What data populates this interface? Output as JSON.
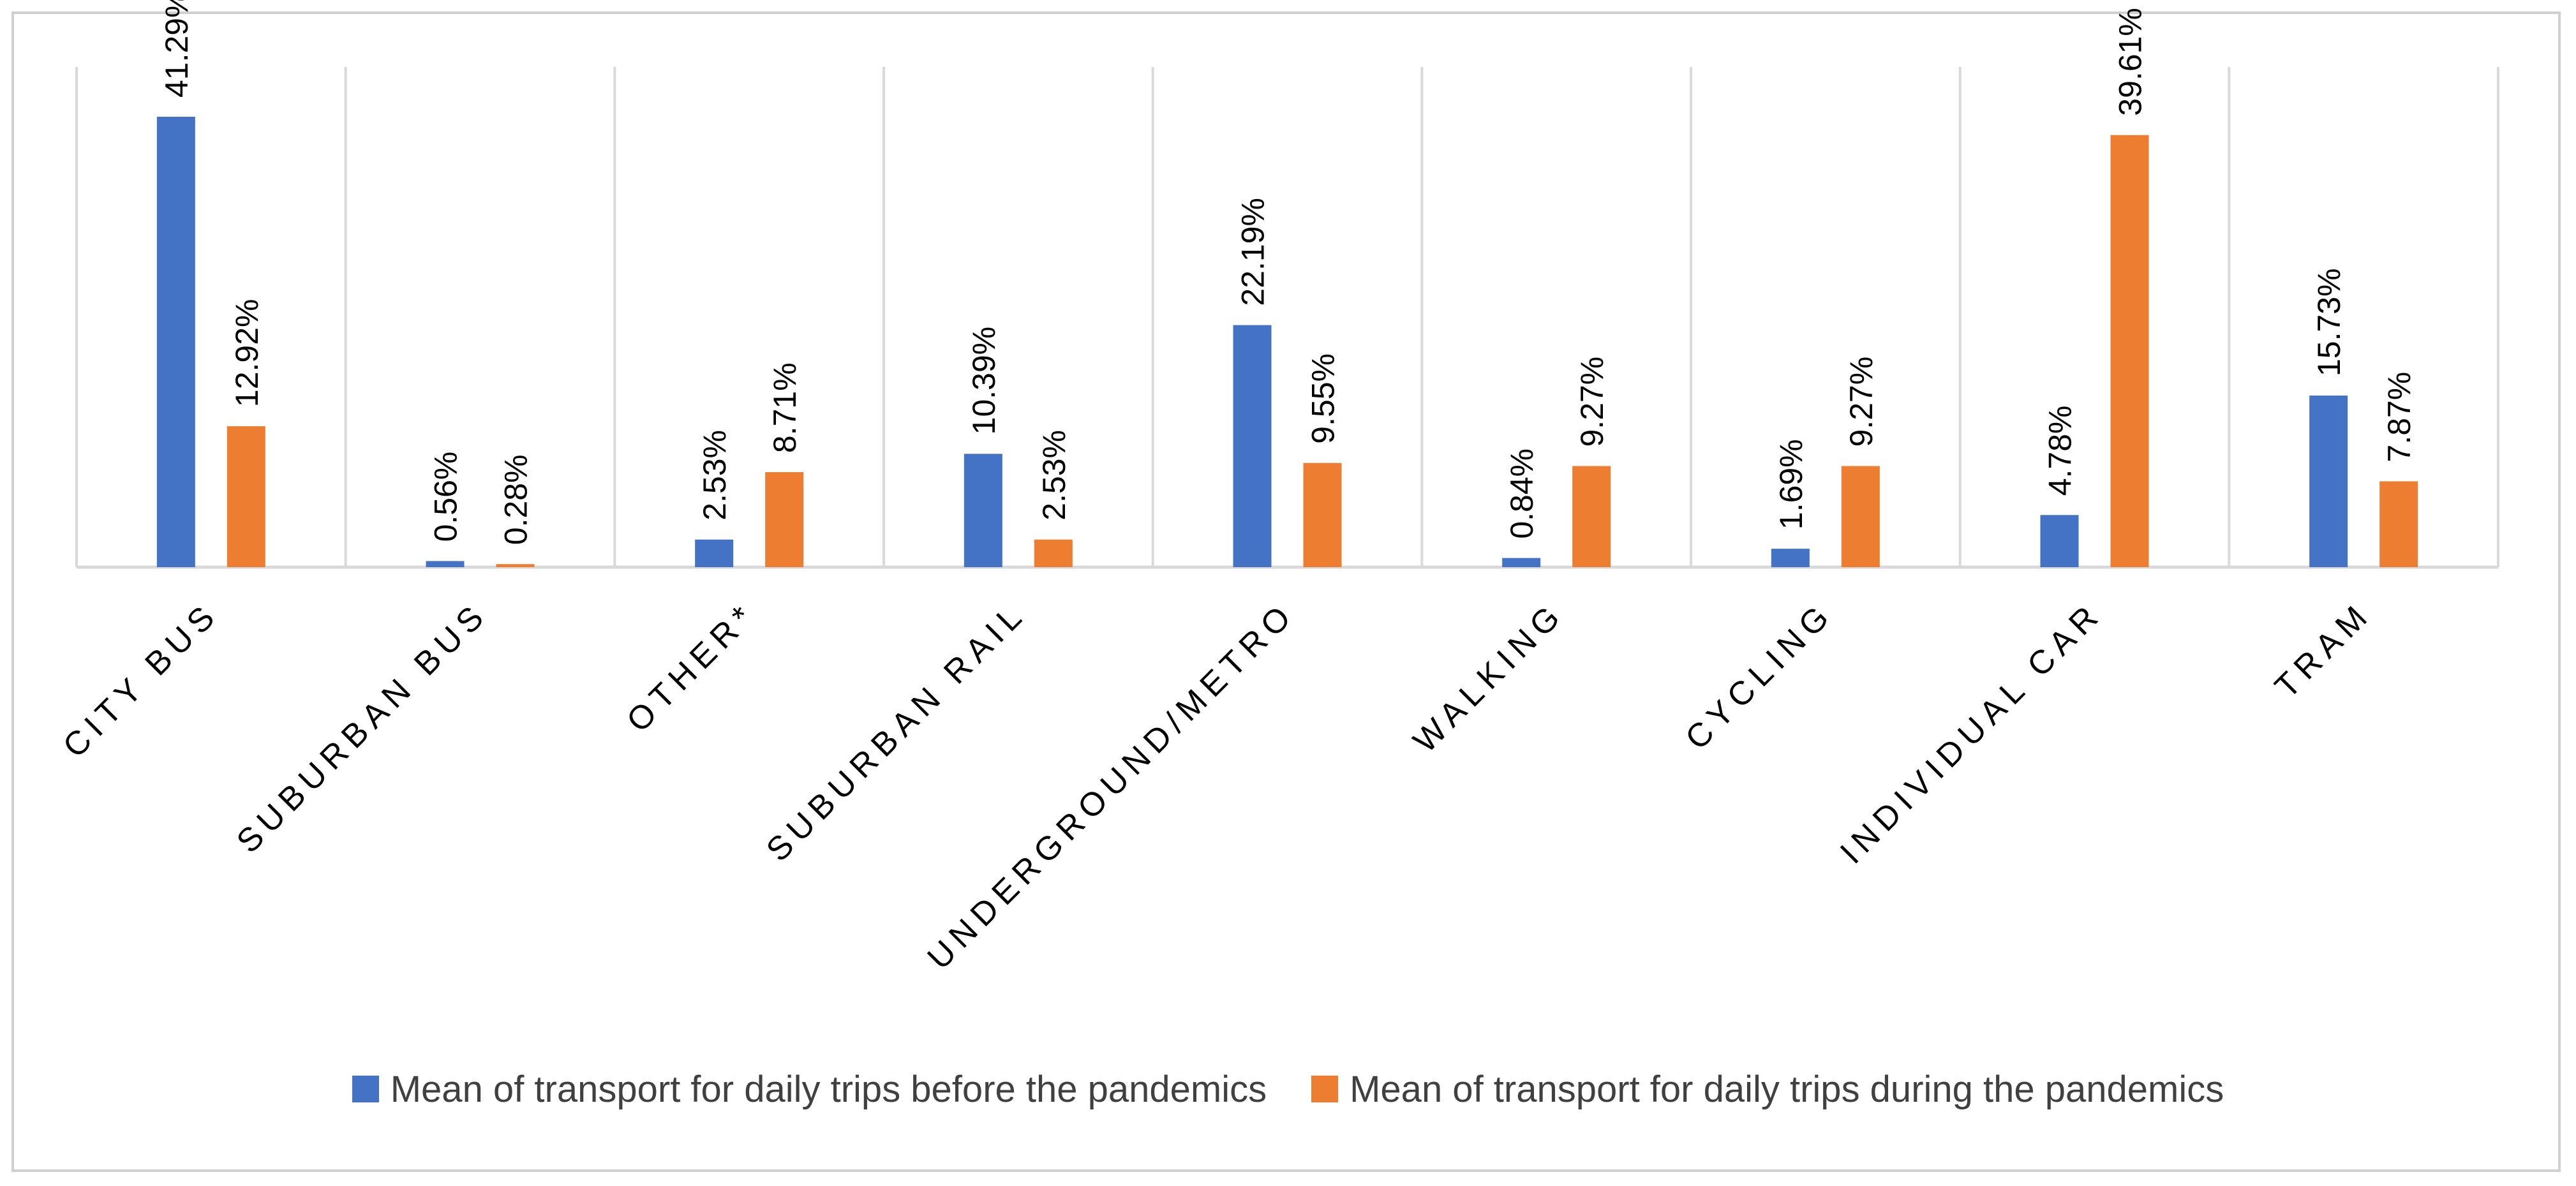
{
  "chart_data": {
    "type": "bar",
    "title": "",
    "xlabel": "",
    "ylabel": "",
    "ylim": [
      0,
      41.29
    ],
    "grid": "vertical category separators",
    "legend_position": "bottom",
    "categories": [
      "CITY BUS",
      "SUBURBAN BUS",
      "OTHER*",
      "SUBURBAN RAIL",
      "UNDERGROUND/METRO",
      "WALKING",
      "CYCLING",
      "INDIVIDUAL CAR",
      "TRAM"
    ],
    "series": [
      {
        "name": "Mean of transport for daily trips before the pandemics",
        "color": "#4472C4",
        "values": [
          41.29,
          0.56,
          2.53,
          10.39,
          22.19,
          0.84,
          1.69,
          4.78,
          15.73
        ],
        "labels": [
          "41.29%",
          "0.56%",
          "2.53%",
          "10.39%",
          "22.19%",
          "0.84%",
          "1.69%",
          "4.78%",
          "15.73%"
        ]
      },
      {
        "name": "Mean of transport for daily trips during the pandemics",
        "color": "#ED7D31",
        "values": [
          12.92,
          0.28,
          8.71,
          2.53,
          9.55,
          9.27,
          9.27,
          39.61,
          7.87
        ],
        "labels": [
          "12.92%",
          "0.28%",
          "8.71%",
          "2.53%",
          "9.55%",
          "9.27%",
          "9.27%",
          "39.61%",
          "7.87%"
        ]
      }
    ]
  }
}
